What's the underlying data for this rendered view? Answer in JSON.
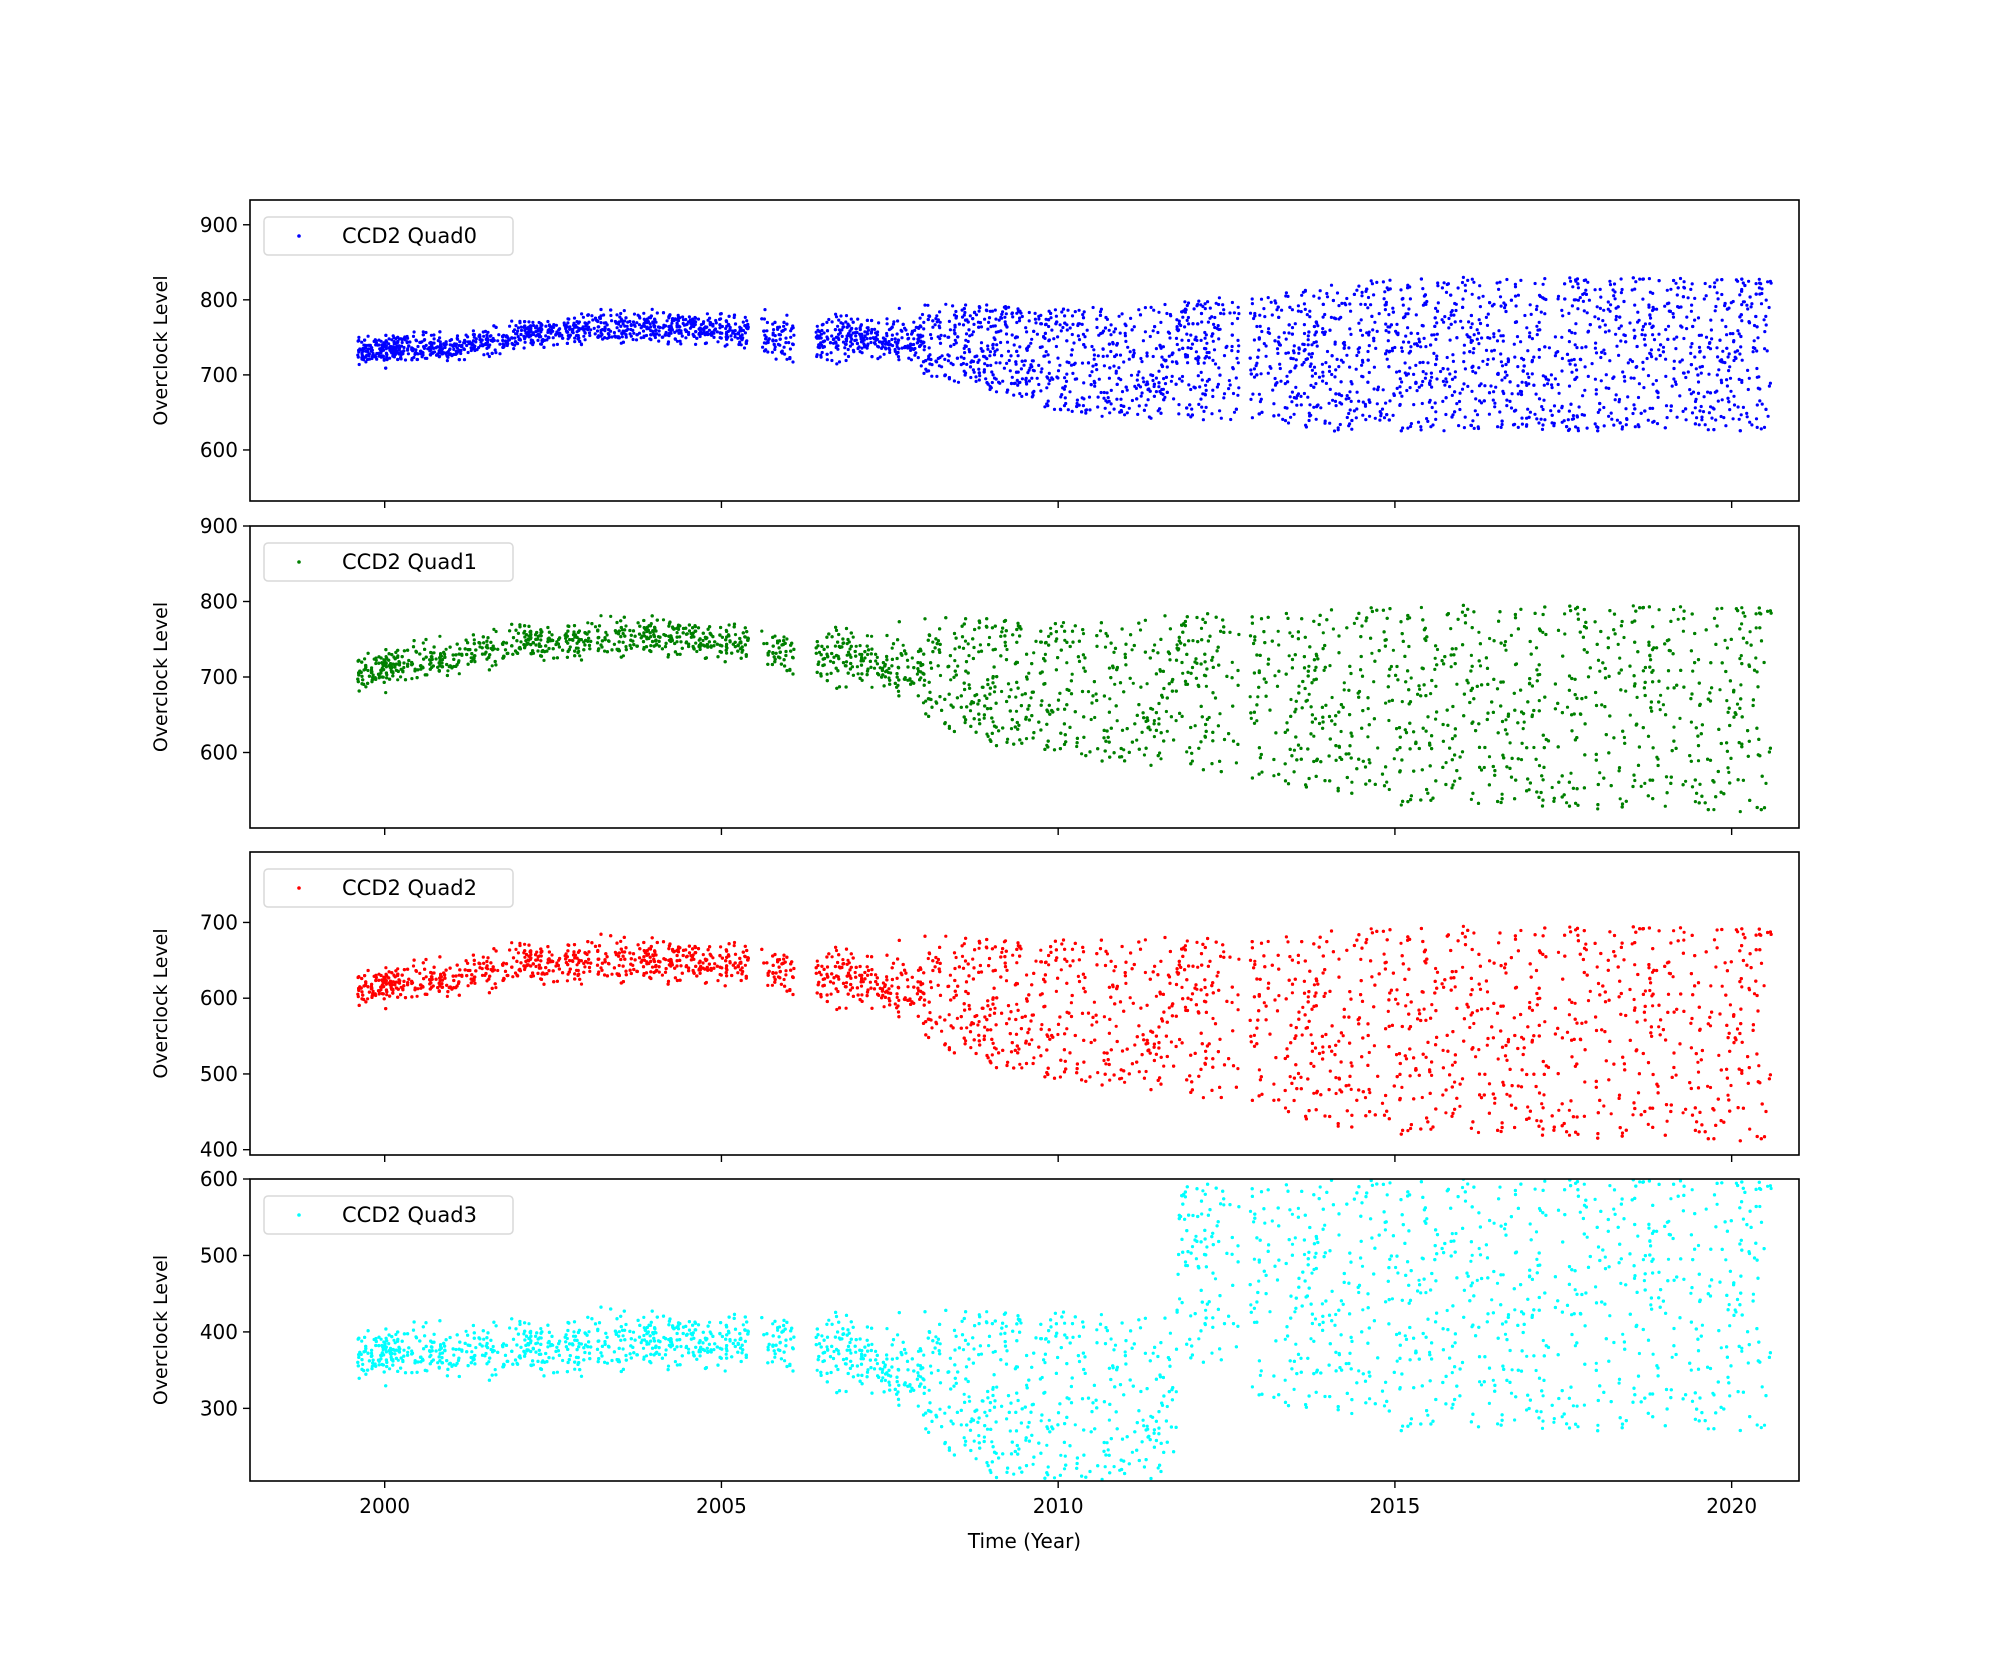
{
  "chart_data": [
    {
      "type": "scatter",
      "xlabel": "",
      "ylabel": "Overclock Level",
      "xlim": [
        1998.0,
        2021.0
      ],
      "ylim": [
        532,
        933
      ],
      "xticks": [
        2000,
        2005,
        2010,
        2015,
        2020
      ],
      "yticks": [
        600,
        700,
        800,
        900
      ],
      "x_tick_labels_shown": false,
      "legend_position": "top-left",
      "grid": false,
      "series": [
        {
          "name": "CCD2 Quad0",
          "color": "#0000ff",
          "gaps": [
            [
              2005.4,
              2005.6
            ],
            [
              2006.1,
              2006.4
            ],
            [
              2012.7,
              2012.85
            ]
          ],
          "x_range": [
            1999.6,
            2020.6
          ],
          "band_by_year": [
            [
              1999.6,
              705,
              760
            ],
            [
              2001,
              710,
              760
            ],
            [
              2002,
              725,
              780
            ],
            [
              2003,
              735,
              790
            ],
            [
              2004,
              735,
              795
            ],
            [
              2005,
              735,
              790
            ],
            [
              2006,
              700,
              790
            ],
            [
              2007,
              710,
              790
            ],
            [
              2008,
              700,
              795
            ],
            [
              2009,
              680,
              795
            ],
            [
              2010,
              650,
              790
            ],
            [
              2011,
              640,
              790
            ],
            [
              2012,
              640,
              800
            ],
            [
              2013,
              640,
              810
            ],
            [
              2014,
              625,
              820
            ],
            [
              2015,
              625,
              830
            ],
            [
              2020.6,
              625,
              830
            ]
          ]
        }
      ]
    },
    {
      "type": "scatter",
      "xlabel": "",
      "ylabel": "Overclock Level",
      "xlim": [
        1998.0,
        2021.0
      ],
      "ylim": [
        500,
        900
      ],
      "xticks": [
        2000,
        2005,
        2010,
        2015,
        2020
      ],
      "yticks": [
        600,
        700,
        800,
        900
      ],
      "x_tick_labels_shown": false,
      "legend_position": "top-left",
      "grid": false,
      "series": [
        {
          "name": "CCD2 Quad1",
          "color": "#008000",
          "gaps": [
            [
              2005.4,
              2005.6
            ],
            [
              2006.1,
              2006.4
            ],
            [
              2012.7,
              2012.85
            ]
          ],
          "x_range": [
            1999.6,
            2020.6
          ],
          "band_by_year": [
            [
              1999.6,
              670,
              740
            ],
            [
              2001,
              690,
              760
            ],
            [
              2002,
              710,
              780
            ],
            [
              2003,
              715,
              785
            ],
            [
              2004,
              720,
              790
            ],
            [
              2005,
              715,
              785
            ],
            [
              2006,
              690,
              770
            ],
            [
              2007,
              670,
              780
            ],
            [
              2008,
              640,
              780
            ],
            [
              2009,
              610,
              780
            ],
            [
              2010,
              600,
              775
            ],
            [
              2011,
              580,
              775
            ],
            [
              2012,
              580,
              790
            ],
            [
              2013,
              560,
              790
            ],
            [
              2014,
              550,
              790
            ],
            [
              2015,
              530,
              795
            ],
            [
              2020.6,
              520,
              795
            ]
          ]
        }
      ]
    },
    {
      "type": "scatter",
      "xlabel": "",
      "ylabel": "Overclock Level",
      "xlim": [
        1998.0,
        2021.0
      ],
      "ylim": [
        393,
        793
      ],
      "xticks": [
        2000,
        2005,
        2010,
        2015,
        2020
      ],
      "yticks": [
        400,
        500,
        600,
        700
      ],
      "x_tick_labels_shown": false,
      "legend_position": "top-left",
      "grid": false,
      "series": [
        {
          "name": "CCD2 Quad2",
          "color": "#ff0000",
          "gaps": [
            [
              2005.4,
              2005.6
            ],
            [
              2006.1,
              2006.4
            ],
            [
              2012.7,
              2012.85
            ]
          ],
          "x_range": [
            1999.6,
            2020.6
          ],
          "band_by_year": [
            [
              1999.6,
              580,
              645
            ],
            [
              2001,
              590,
              660
            ],
            [
              2002,
              605,
              685
            ],
            [
              2003,
              610,
              690
            ],
            [
              2004,
              610,
              690
            ],
            [
              2005,
              610,
              690
            ],
            [
              2006,
              590,
              675
            ],
            [
              2007,
              570,
              680
            ],
            [
              2008,
              540,
              685
            ],
            [
              2009,
              510,
              680
            ],
            [
              2010,
              490,
              680
            ],
            [
              2011,
              480,
              680
            ],
            [
              2012,
              470,
              685
            ],
            [
              2013,
              460,
              685
            ],
            [
              2014,
              430,
              690
            ],
            [
              2015,
              420,
              695
            ],
            [
              2020.6,
              410,
              695
            ]
          ]
        }
      ]
    },
    {
      "type": "scatter",
      "xlabel": "Time (Year)",
      "ylabel": "Overclock Level",
      "xlim": [
        1998.0,
        2021.0
      ],
      "ylim": [
        205,
        600
      ],
      "xticks": [
        2000,
        2005,
        2010,
        2015,
        2020
      ],
      "xtick_labels": [
        "2000",
        "2005",
        "2010",
        "2015",
        "2020"
      ],
      "yticks": [
        300,
        400,
        500,
        600
      ],
      "x_tick_labels_shown": true,
      "legend_position": "top-left",
      "grid": false,
      "series": [
        {
          "name": "CCD2 Quad3",
          "color": "#00ffff",
          "gaps": [
            [
              2005.4,
              2005.6
            ],
            [
              2006.1,
              2006.4
            ],
            [
              2012.7,
              2012.85
            ]
          ],
          "x_range": [
            1999.6,
            2020.6
          ],
          "band_by_year": [
            [
              1999.6,
              325,
              415
            ],
            [
              2001,
              325,
              420
            ],
            [
              2002,
              325,
              430
            ],
            [
              2003,
              330,
              440
            ],
            [
              2004,
              340,
              440
            ],
            [
              2005,
              340,
              440
            ],
            [
              2006,
              330,
              440
            ],
            [
              2007,
              300,
              440
            ],
            [
              2008,
              260,
              430
            ],
            [
              2009,
              210,
              430
            ],
            [
              2010,
              205,
              430
            ],
            [
              2011.75,
              205,
              420
            ],
            [
              2011.8,
              360,
              600
            ],
            [
              2012.7,
              360,
              600
            ],
            [
              2013,
              300,
              600
            ],
            [
              2014,
              300,
              600
            ],
            [
              2015,
              270,
              600
            ],
            [
              2020.6,
              270,
              600
            ]
          ]
        }
      ]
    }
  ]
}
